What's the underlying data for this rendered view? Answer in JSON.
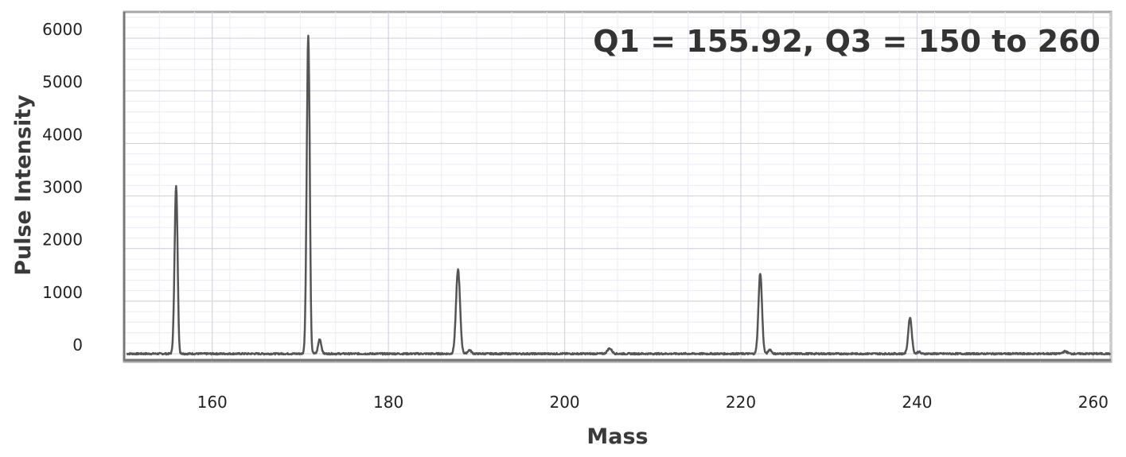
{
  "chart_data": {
    "type": "line",
    "title": "",
    "annotation": "Q1 = 155.92, Q3 = 150 to 260",
    "xlabel": "Mass",
    "ylabel": "Pulse Intensity",
    "xlim": [
      150,
      262
    ],
    "ylim": [
      -150,
      6500
    ],
    "x_ticks": [
      160,
      180,
      200,
      220,
      240,
      260
    ],
    "y_ticks": [
      0,
      1000,
      2000,
      3000,
      4000,
      5000,
      6000
    ],
    "grid": true,
    "legend": "none",
    "line_color": "#555555",
    "peaks": [
      {
        "x": 155.9,
        "y": 3200,
        "width": 0.35
      },
      {
        "x": 170.9,
        "y": 6050,
        "width": 0.35
      },
      {
        "x": 172.2,
        "y": 280,
        "width": 0.35
      },
      {
        "x": 187.9,
        "y": 1600,
        "width": 0.45
      },
      {
        "x": 189.2,
        "y": 70,
        "width": 0.4
      },
      {
        "x": 205.1,
        "y": 100,
        "width": 0.5
      },
      {
        "x": 222.2,
        "y": 1530,
        "width": 0.4
      },
      {
        "x": 223.3,
        "y": 80,
        "width": 0.35
      },
      {
        "x": 239.2,
        "y": 690,
        "width": 0.4
      },
      {
        "x": 240.2,
        "y": 40,
        "width": 0.3
      },
      {
        "x": 256.8,
        "y": 45,
        "width": 0.5
      }
    ]
  }
}
